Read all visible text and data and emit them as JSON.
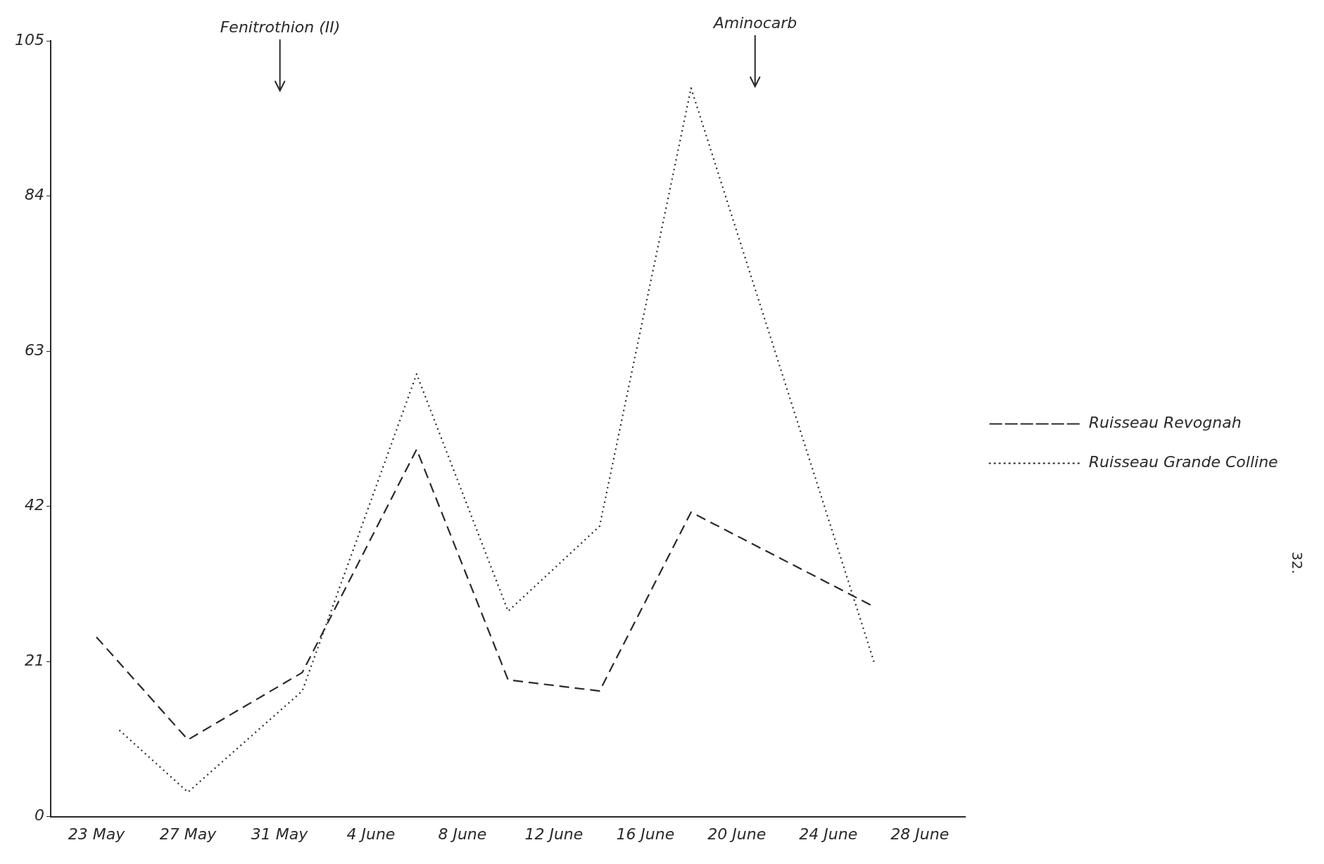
{
  "chart_data": {
    "type": "line",
    "series": [
      {
        "name": "Ruisseau Revognah",
        "color": "#2a2a2a",
        "line_style": "dashed",
        "x": [
          "--05-23",
          "--05-27",
          "--06-01",
          "--06-06",
          "--06-10",
          "--06-14",
          "--06-18",
          "--06-26"
        ],
        "values": [
          24.3,
          10.4,
          19.5,
          49.7,
          18.5,
          17.0,
          41.2,
          28.4
        ]
      },
      {
        "name": "Ruisseau Grande Colline",
        "color": "#2a2a2a",
        "line_style": "dotted",
        "x": [
          "--05-24",
          "--05-27",
          "--06-01",
          "--06-06",
          "--06-10",
          "--06-14",
          "--06-18",
          "--06-26"
        ],
        "values": [
          11.7,
          3.3,
          17.0,
          59.9,
          27.8,
          39.3,
          98.6,
          20.9
        ]
      }
    ],
    "xlim": [
      "--05-21",
      "--06-30"
    ],
    "xticks": [
      {
        "value": "--05-23",
        "label": "23 May"
      },
      {
        "value": "--05-27",
        "label": "27 May"
      },
      {
        "value": "--05-31",
        "label": "31 May"
      },
      {
        "value": "--06-04",
        "label": "4 June"
      },
      {
        "value": "--06-08",
        "label": "8 June"
      },
      {
        "value": "--06-12",
        "label": "12 June"
      },
      {
        "value": "--06-16",
        "label": "16 June"
      },
      {
        "value": "--06-20",
        "label": "20 June"
      },
      {
        "value": "--06-24",
        "label": "24 June"
      },
      {
        "value": "--06-28",
        "label": "28 June"
      }
    ],
    "ylim": [
      0,
      105
    ],
    "yticks": [
      0,
      21,
      42,
      63,
      84,
      105
    ],
    "grid": false,
    "legend": "right",
    "marker": "none",
    "annotations": [
      "Fenitrothion (II)",
      "Aminocarb",
      "32."
    ]
  }
}
